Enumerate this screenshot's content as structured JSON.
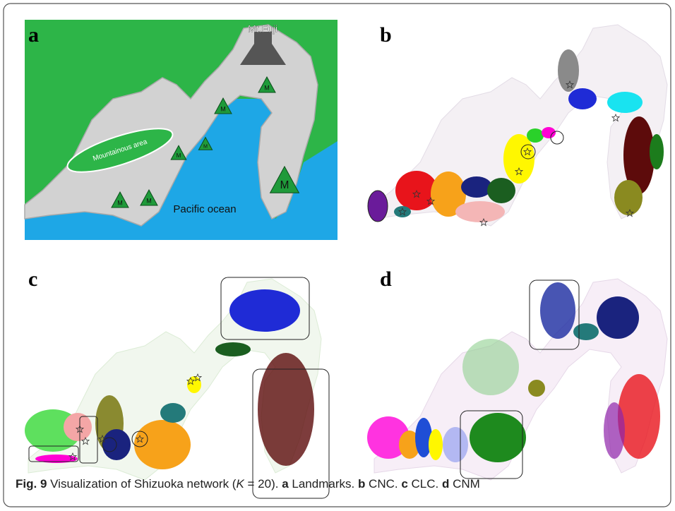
{
  "panels": [
    {
      "label": "a",
      "annotations": {
        "peak": "Mt.Fuji",
        "mountains": "Mountainous area",
        "ocean": "Pacific ocean"
      },
      "markers": [
        "M",
        "M",
        "M",
        "M",
        "M",
        "M",
        "M"
      ]
    },
    {
      "label": "b"
    },
    {
      "label": "c"
    },
    {
      "label": "d"
    }
  ],
  "caption": {
    "label": "Fig. 9",
    "parts": [
      "Visualization of Shizuoka network (",
      "K",
      " = 20). ",
      "a",
      " Landmarks. ",
      "b",
      " CNC. ",
      "c",
      " CLC. ",
      "d",
      " CNM"
    ]
  }
}
